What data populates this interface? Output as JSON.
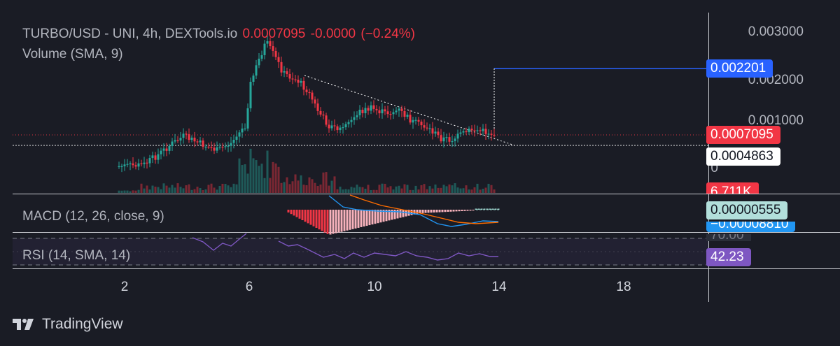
{
  "legend": {
    "symbol": "TURBO/USD - UNI, 4h, DEXTools.io",
    "last_price": "0.0007095",
    "change": "-0.0000",
    "change_pct": "(−0.24%)",
    "volume": "Volume (SMA, 9)"
  },
  "indicators": {
    "macd": "MACD (12, 26, close, 9)",
    "rsi": "RSI (14, SMA, 14)"
  },
  "price_axis": {
    "labels": [
      "0.003000",
      "0.002000",
      "0.001000",
      "0"
    ]
  },
  "tags": {
    "alert_price": "0.002201",
    "last_price": "0.0007095",
    "crosshair_price": "0.0004863",
    "volume": "6.711K",
    "macd_value": "0.00000555",
    "macd_signal": "−0.00008810",
    "rsi_value": "42.23",
    "rsi_level": "70.00"
  },
  "time_axis": {
    "labels": [
      "2",
      "6",
      "10",
      "14",
      "18"
    ]
  },
  "branding": {
    "name": "TradingView"
  },
  "colors": {
    "background": "#1a1c25",
    "up": "#26a69a",
    "down": "#f23645",
    "alert_line": "#2962ff",
    "rsi_line": "#7e57c2",
    "macd_line": "#2196f3",
    "signal_line": "#ff6d00"
  }
}
